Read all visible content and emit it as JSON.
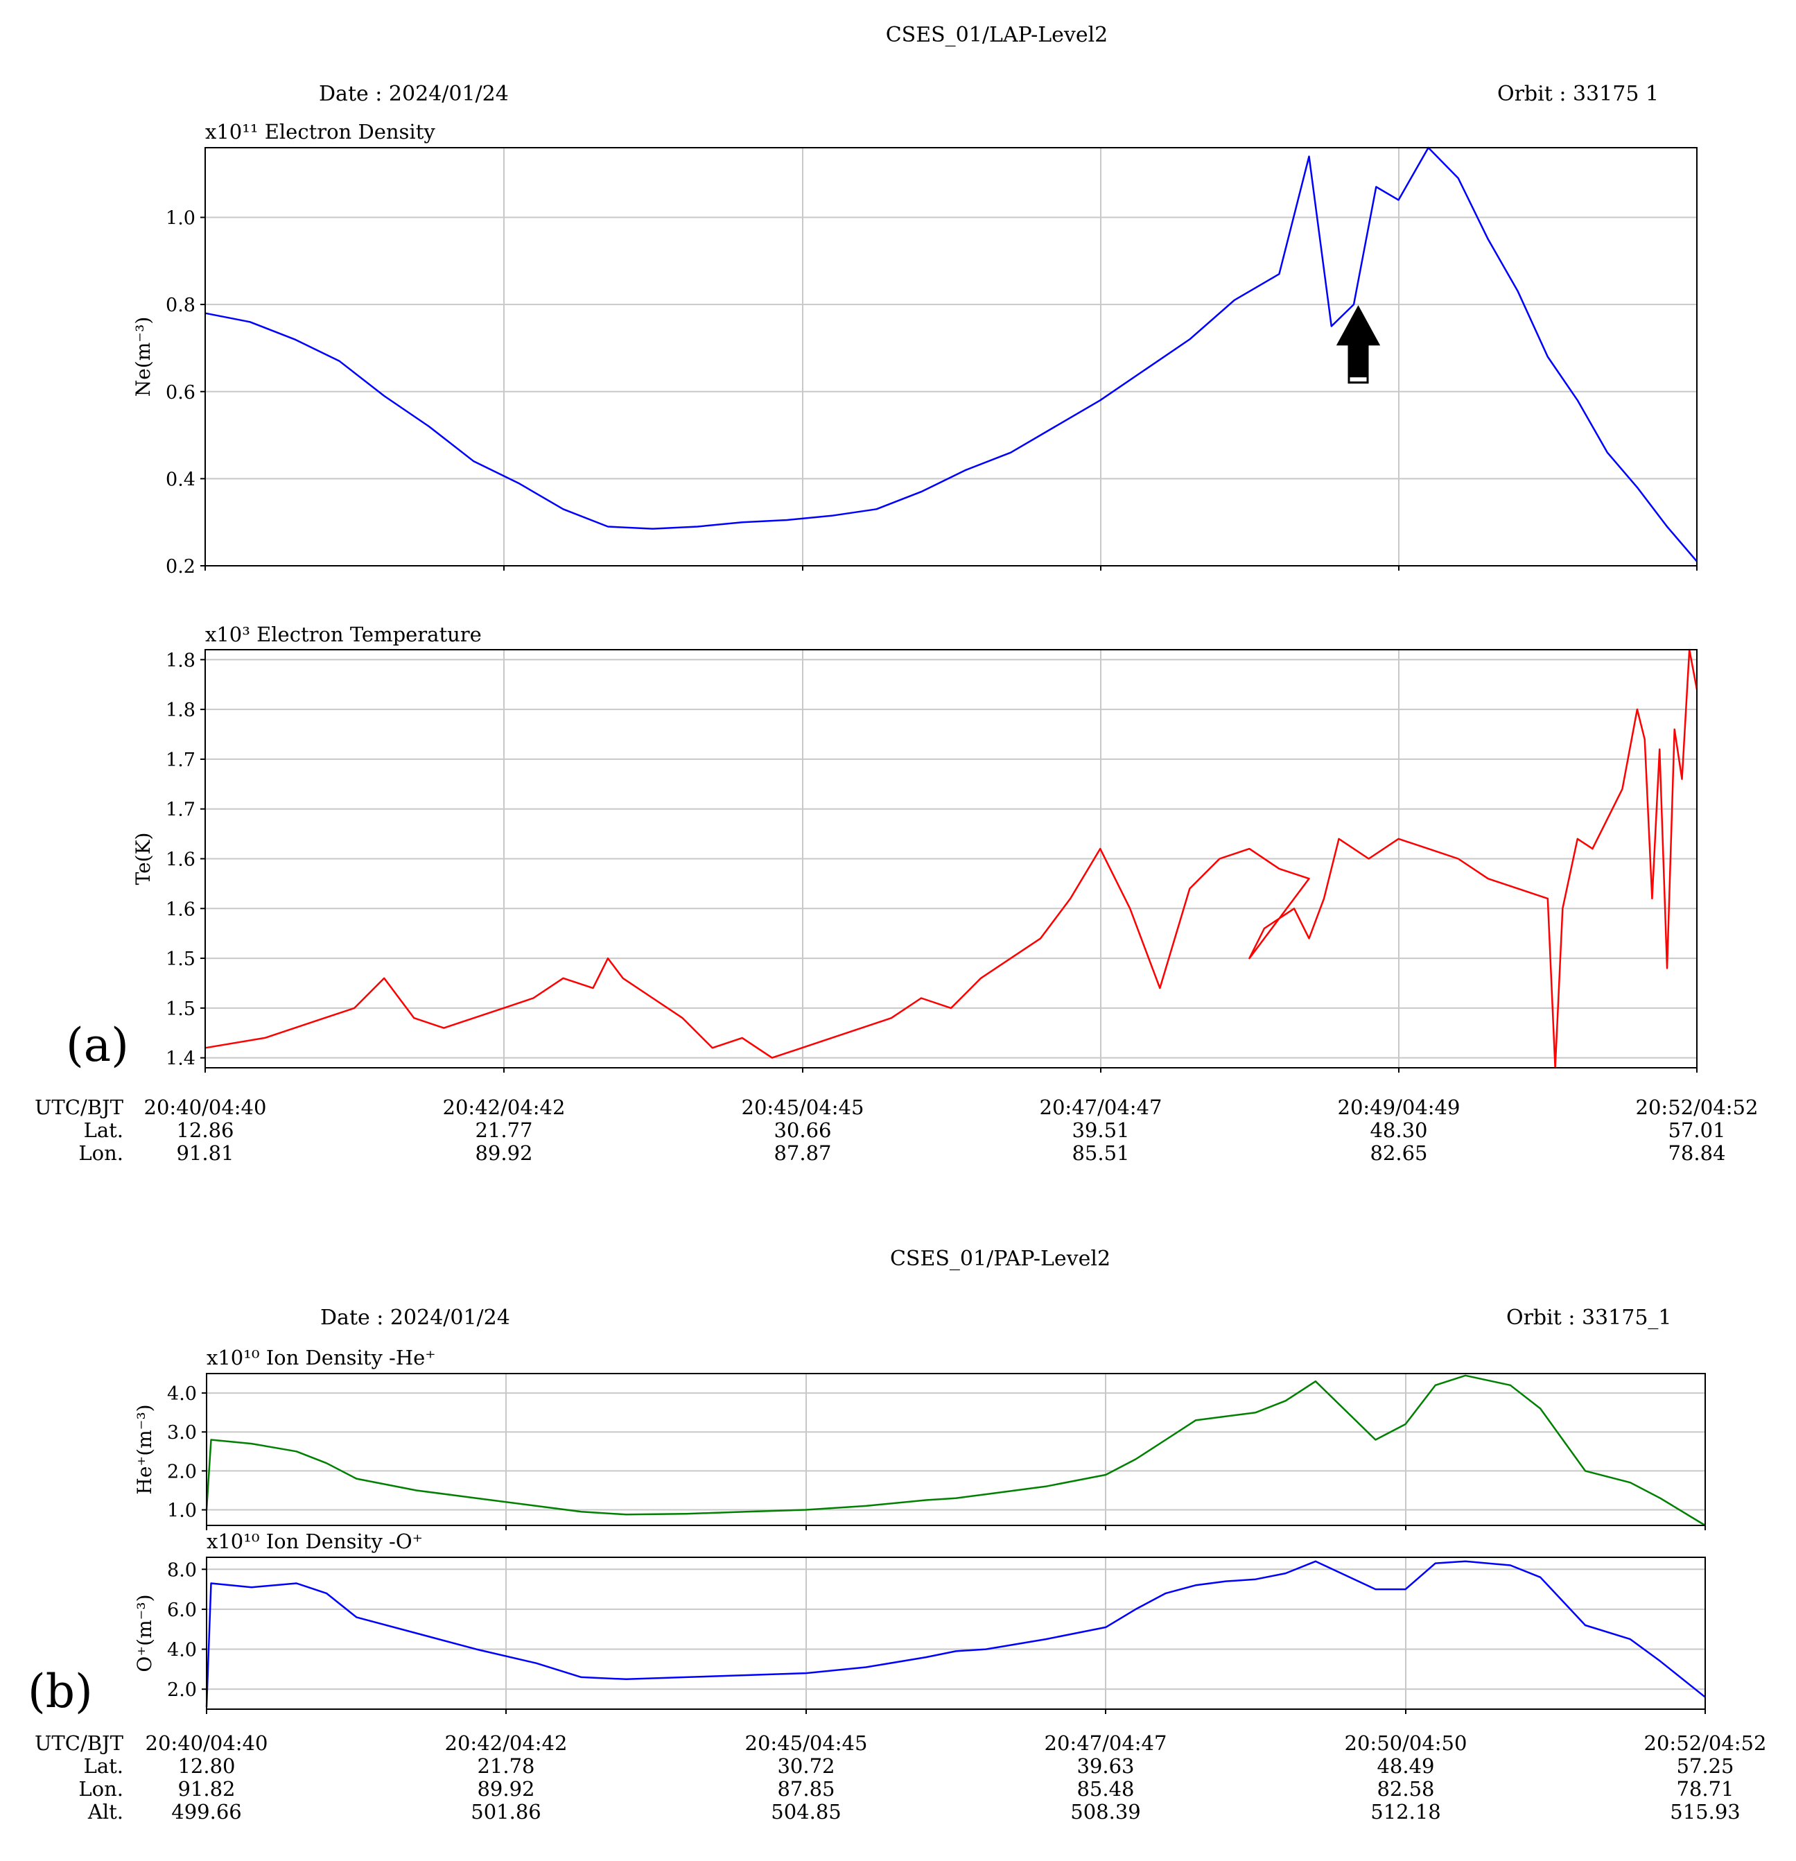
{
  "panel_a": {
    "title": "CSES_01/LAP-Level2",
    "date": "Date : 2024/01/24",
    "orbit": "Orbit : 33175  1",
    "label": "(a)",
    "footer": {
      "row_labels": [
        "UTC/BJT",
        "Lat.",
        "Lon."
      ],
      "columns": [
        [
          "20:40/04:40",
          "12.86",
          "91.81"
        ],
        [
          "20:42/04:42",
          "21.77",
          "89.92"
        ],
        [
          "20:45/04:45",
          "30.66",
          "87.87"
        ],
        [
          "20:47/04:47",
          "39.51",
          "85.51"
        ],
        [
          "20:49/04:49",
          "48.30",
          "82.65"
        ],
        [
          "20:52/04:52",
          "57.01",
          "78.84"
        ]
      ]
    }
  },
  "panel_b": {
    "title": "CSES_01/PAP-Level2",
    "date": "Date : 2024/01/24",
    "orbit": "Orbit : 33175_1",
    "label": "(b)",
    "footer": {
      "row_labels": [
        "UTC/BJT",
        "Lat.",
        "Lon.",
        "Alt."
      ],
      "columns": [
        [
          "20:40/04:40",
          "12.80",
          "91.82",
          "499.66"
        ],
        [
          "20:42/04:42",
          "21.78",
          "89.92",
          "501.86"
        ],
        [
          "20:45/04:45",
          "30.72",
          "87.85",
          "504.85"
        ],
        [
          "20:47/04:47",
          "39.63",
          "85.48",
          "508.39"
        ],
        [
          "20:50/04:50",
          "48.49",
          "82.58",
          "512.18"
        ],
        [
          "20:52/04:52",
          "57.25",
          "78.71",
          "515.93"
        ]
      ]
    }
  },
  "chart_data": [
    {
      "type": "line",
      "title": "x10¹¹ Electron Density",
      "ylabel": "Ne(m⁻³)",
      "ylim": [
        0.2,
        1.16
      ],
      "yticks": [
        "0.2",
        "0.4",
        "0.6",
        "0.8",
        "1.0"
      ],
      "ytick_values": [
        0.2,
        0.4,
        0.6,
        0.8,
        1.0
      ],
      "xlim": [
        0,
        1
      ],
      "grid": true,
      "color": "#0000ff",
      "annotation": "black up arrow pointing at the Ne peak near 20:49",
      "arrow_at": [
        0.773,
        0.62
      ],
      "x": [
        0,
        0.03,
        0.06,
        0.09,
        0.12,
        0.15,
        0.18,
        0.21,
        0.24,
        0.27,
        0.3,
        0.33,
        0.36,
        0.39,
        0.42,
        0.45,
        0.48,
        0.51,
        0.54,
        0.57,
        0.6,
        0.63,
        0.66,
        0.69,
        0.72,
        0.74,
        0.755,
        0.77,
        0.785,
        0.8,
        0.82,
        0.84,
        0.86,
        0.88,
        0.9,
        0.92,
        0.94,
        0.96,
        0.98,
        1.0
      ],
      "values": [
        0.78,
        0.76,
        0.72,
        0.67,
        0.59,
        0.52,
        0.44,
        0.39,
        0.33,
        0.29,
        0.285,
        0.29,
        0.3,
        0.305,
        0.315,
        0.33,
        0.37,
        0.42,
        0.46,
        0.52,
        0.58,
        0.65,
        0.72,
        0.81,
        0.87,
        1.14,
        0.75,
        0.8,
        1.07,
        1.04,
        1.16,
        1.09,
        0.95,
        0.83,
        0.68,
        0.58,
        0.46,
        0.38,
        0.29,
        0.21
      ]
    },
    {
      "type": "line",
      "title": "x10³ Electron Temperature",
      "ylabel": "Te(K)",
      "ylim": [
        1.39,
        1.81
      ],
      "yticks": [
        "1.4",
        "1.5",
        "1.5",
        "1.6",
        "1.6",
        "1.7",
        "1.7",
        "1.8",
        "1.8"
      ],
      "ytick_values": [
        1.4,
        1.45,
        1.5,
        1.55,
        1.6,
        1.65,
        1.7,
        1.75,
        1.8
      ],
      "xlim": [
        0,
        1
      ],
      "grid": true,
      "color": "#ff0000",
      "x": [
        0,
        0.04,
        0.08,
        0.1,
        0.12,
        0.14,
        0.16,
        0.2,
        0.22,
        0.24,
        0.26,
        0.27,
        0.28,
        0.3,
        0.32,
        0.34,
        0.36,
        0.38,
        0.4,
        0.42,
        0.44,
        0.46,
        0.48,
        0.5,
        0.52,
        0.54,
        0.56,
        0.58,
        0.6,
        0.62,
        0.64,
        0.66,
        0.68,
        0.7,
        0.72,
        0.74,
        0.7,
        0.71,
        0.73,
        0.74,
        0.75,
        0.76,
        0.78,
        0.8,
        0.82,
        0.84,
        0.86,
        0.88,
        0.9,
        0.905,
        0.91,
        0.92,
        0.93,
        0.94,
        0.95,
        0.96,
        0.965,
        0.97,
        0.975,
        0.98,
        0.985,
        0.99,
        0.995,
        1.0
      ],
      "values": [
        1.41,
        1.42,
        1.44,
        1.45,
        1.48,
        1.44,
        1.43,
        1.45,
        1.46,
        1.48,
        1.47,
        1.5,
        1.48,
        1.46,
        1.44,
        1.41,
        1.42,
        1.4,
        1.41,
        1.42,
        1.43,
        1.44,
        1.46,
        1.45,
        1.48,
        1.5,
        1.52,
        1.56,
        1.61,
        1.55,
        1.47,
        1.57,
        1.6,
        1.61,
        1.59,
        1.58,
        1.5,
        1.53,
        1.55,
        1.52,
        1.56,
        1.62,
        1.6,
        1.62,
        1.61,
        1.6,
        1.58,
        1.57,
        1.56,
        1.39,
        1.55,
        1.62,
        1.61,
        1.64,
        1.67,
        1.75,
        1.72,
        1.56,
        1.71,
        1.49,
        1.73,
        1.68,
        1.81,
        1.77
      ]
    },
    {
      "type": "line",
      "title": "x10¹⁰ Ion Density -He⁺",
      "ylabel": "He⁺(m⁻³)",
      "ylim": [
        0.6,
        4.5
      ],
      "yticks": [
        "1.0",
        "2.0",
        "3.0",
        "4.0"
      ],
      "ytick_values": [
        1.0,
        2.0,
        3.0,
        4.0
      ],
      "xlim": [
        0,
        1
      ],
      "grid": true,
      "color": "#008000",
      "x": [
        0,
        0.003,
        0.03,
        0.06,
        0.08,
        0.1,
        0.14,
        0.18,
        0.22,
        0.25,
        0.28,
        0.32,
        0.36,
        0.4,
        0.44,
        0.48,
        0.5,
        0.52,
        0.56,
        0.6,
        0.62,
        0.64,
        0.66,
        0.68,
        0.7,
        0.72,
        0.74,
        0.78,
        0.8,
        0.82,
        0.84,
        0.87,
        0.89,
        0.92,
        0.95,
        0.97,
        1.0
      ],
      "values": [
        1.0,
        2.8,
        2.7,
        2.5,
        2.2,
        1.8,
        1.5,
        1.3,
        1.1,
        0.95,
        0.88,
        0.9,
        0.95,
        1.0,
        1.1,
        1.25,
        1.3,
        1.4,
        1.6,
        1.9,
        2.3,
        2.8,
        3.3,
        3.4,
        3.5,
        3.8,
        4.3,
        2.8,
        3.2,
        4.2,
        4.45,
        4.2,
        3.6,
        2.0,
        1.7,
        1.3,
        0.6
      ]
    },
    {
      "type": "line",
      "title": "x10¹⁰ Ion Density -O⁺",
      "ylabel": "O⁺(m⁻³)",
      "ylim": [
        1.0,
        8.6
      ],
      "yticks": [
        "2.0",
        "4.0",
        "6.0",
        "8.0"
      ],
      "ytick_values": [
        2.0,
        4.0,
        6.0,
        8.0
      ],
      "xlim": [
        0,
        1
      ],
      "grid": true,
      "color": "#0000ff",
      "x": [
        0,
        0.003,
        0.03,
        0.06,
        0.08,
        0.1,
        0.14,
        0.18,
        0.22,
        0.25,
        0.28,
        0.32,
        0.36,
        0.4,
        0.44,
        0.48,
        0.5,
        0.52,
        0.56,
        0.6,
        0.62,
        0.64,
        0.66,
        0.68,
        0.7,
        0.72,
        0.74,
        0.78,
        0.8,
        0.82,
        0.84,
        0.87,
        0.89,
        0.92,
        0.95,
        0.97,
        1.0
      ],
      "values": [
        1.1,
        7.3,
        7.1,
        7.3,
        6.8,
        5.6,
        4.8,
        4.0,
        3.3,
        2.6,
        2.5,
        2.6,
        2.7,
        2.8,
        3.1,
        3.6,
        3.9,
        4.0,
        4.5,
        5.1,
        6.0,
        6.8,
        7.2,
        7.4,
        7.5,
        7.8,
        8.4,
        7.0,
        7.0,
        8.3,
        8.4,
        8.2,
        7.6,
        5.2,
        4.5,
        3.4,
        1.6
      ]
    }
  ]
}
